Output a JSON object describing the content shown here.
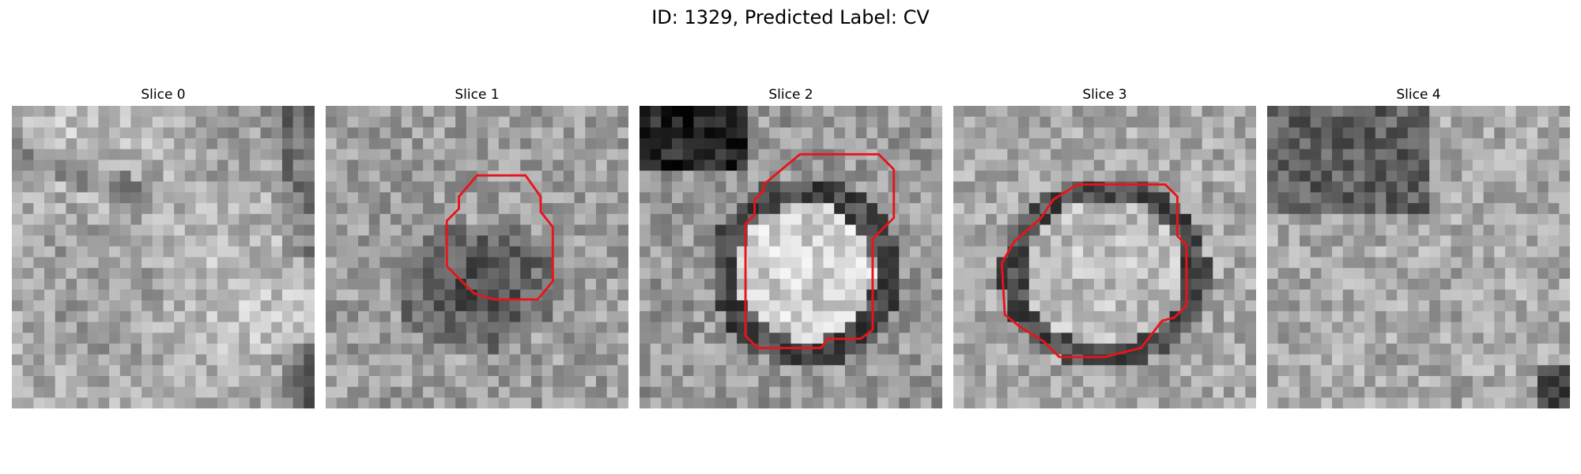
{
  "figure": {
    "title": "ID: 1329, Predicted Label: CV"
  },
  "panels": [
    {
      "title": "Slice 0",
      "seed": 11,
      "pattern": "diffuse",
      "outline": []
    },
    {
      "title": "Slice 1",
      "seed": 23,
      "pattern": "dark_blob",
      "outline": [
        [
          0.5,
          0.23
        ],
        [
          0.66,
          0.23
        ],
        [
          0.71,
          0.3
        ],
        [
          0.71,
          0.35
        ],
        [
          0.75,
          0.4
        ],
        [
          0.75,
          0.58
        ],
        [
          0.7,
          0.64
        ],
        [
          0.56,
          0.64
        ],
        [
          0.49,
          0.62
        ],
        [
          0.4,
          0.53
        ],
        [
          0.4,
          0.38
        ],
        [
          0.44,
          0.34
        ],
        [
          0.44,
          0.3
        ]
      ]
    },
    {
      "title": "Slice 2",
      "seed": 37,
      "pattern": "ring",
      "outline": [
        [
          0.53,
          0.16
        ],
        [
          0.79,
          0.16
        ],
        [
          0.84,
          0.21
        ],
        [
          0.84,
          0.37
        ],
        [
          0.77,
          0.44
        ],
        [
          0.77,
          0.74
        ],
        [
          0.73,
          0.77
        ],
        [
          0.62,
          0.77
        ],
        [
          0.6,
          0.8
        ],
        [
          0.39,
          0.8
        ],
        [
          0.35,
          0.76
        ],
        [
          0.35,
          0.39
        ],
        [
          0.38,
          0.36
        ],
        [
          0.38,
          0.31
        ],
        [
          0.41,
          0.28
        ],
        [
          0.41,
          0.26
        ]
      ]
    },
    {
      "title": "Slice 3",
      "seed": 53,
      "pattern": "ring_bright",
      "outline": [
        [
          0.41,
          0.26
        ],
        [
          0.7,
          0.26
        ],
        [
          0.74,
          0.3
        ],
        [
          0.74,
          0.43
        ],
        [
          0.77,
          0.46
        ],
        [
          0.77,
          0.66
        ],
        [
          0.73,
          0.7
        ],
        [
          0.69,
          0.71
        ],
        [
          0.62,
          0.8
        ],
        [
          0.5,
          0.83
        ],
        [
          0.35,
          0.83
        ],
        [
          0.3,
          0.78
        ],
        [
          0.22,
          0.73
        ],
        [
          0.17,
          0.69
        ],
        [
          0.16,
          0.52
        ],
        [
          0.2,
          0.45
        ],
        [
          0.29,
          0.37
        ],
        [
          0.33,
          0.31
        ]
      ]
    },
    {
      "title": "Slice 4",
      "seed": 71,
      "pattern": "noise",
      "outline": []
    }
  ]
}
